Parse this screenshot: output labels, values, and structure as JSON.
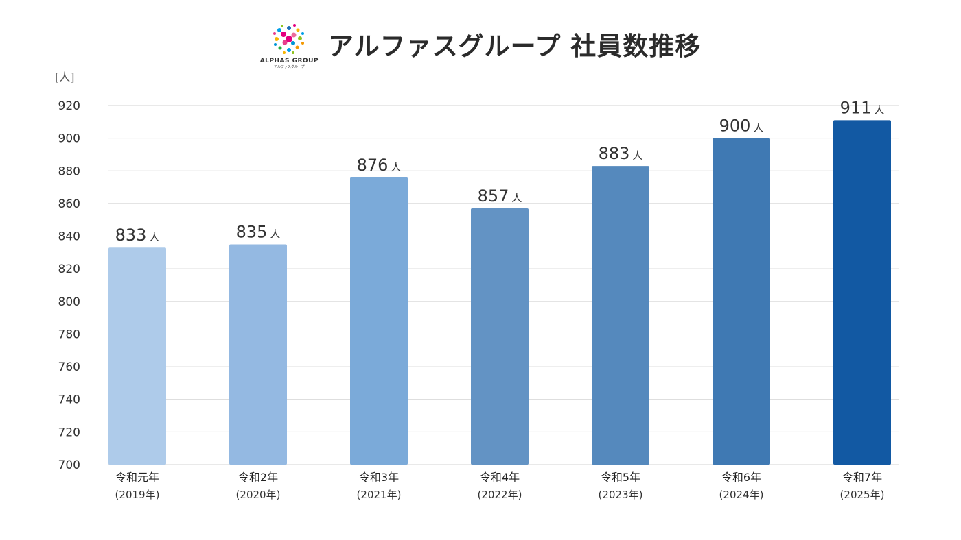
{
  "header": {
    "title": "アルファスグループ 社員数推移",
    "logo_text": "ALPHAS GROUP",
    "logo_subtext": "アルファスグループ"
  },
  "chart_data": {
    "type": "bar",
    "title": "アルファスグループ 社員数推移",
    "ylabel": "[人]",
    "xlabel": "",
    "ylim": [
      700,
      920
    ],
    "yticks": [
      700,
      720,
      740,
      760,
      780,
      800,
      820,
      840,
      860,
      880,
      900,
      920
    ],
    "grid": true,
    "value_unit": "人",
    "categories": [
      {
        "line1": "令和元年",
        "line2": "(2019年)"
      },
      {
        "line1": "令和2年",
        "line2": "(2020年)"
      },
      {
        "line1": "令和3年",
        "line2": "(2021年)"
      },
      {
        "line1": "令和4年",
        "line2": "(2022年)"
      },
      {
        "line1": "令和5年",
        "line2": "(2023年)"
      },
      {
        "line1": "令和6年",
        "line2": "(2024年)"
      },
      {
        "line1": "令和7年",
        "line2": "(2025年)"
      }
    ],
    "values": [
      833,
      835,
      876,
      857,
      883,
      900,
      911
    ],
    "colors": [
      "#aecbea",
      "#94b9e2",
      "#7baad9",
      "#6393c4",
      "#5589bd",
      "#3f79b3",
      "#1259a3"
    ]
  }
}
